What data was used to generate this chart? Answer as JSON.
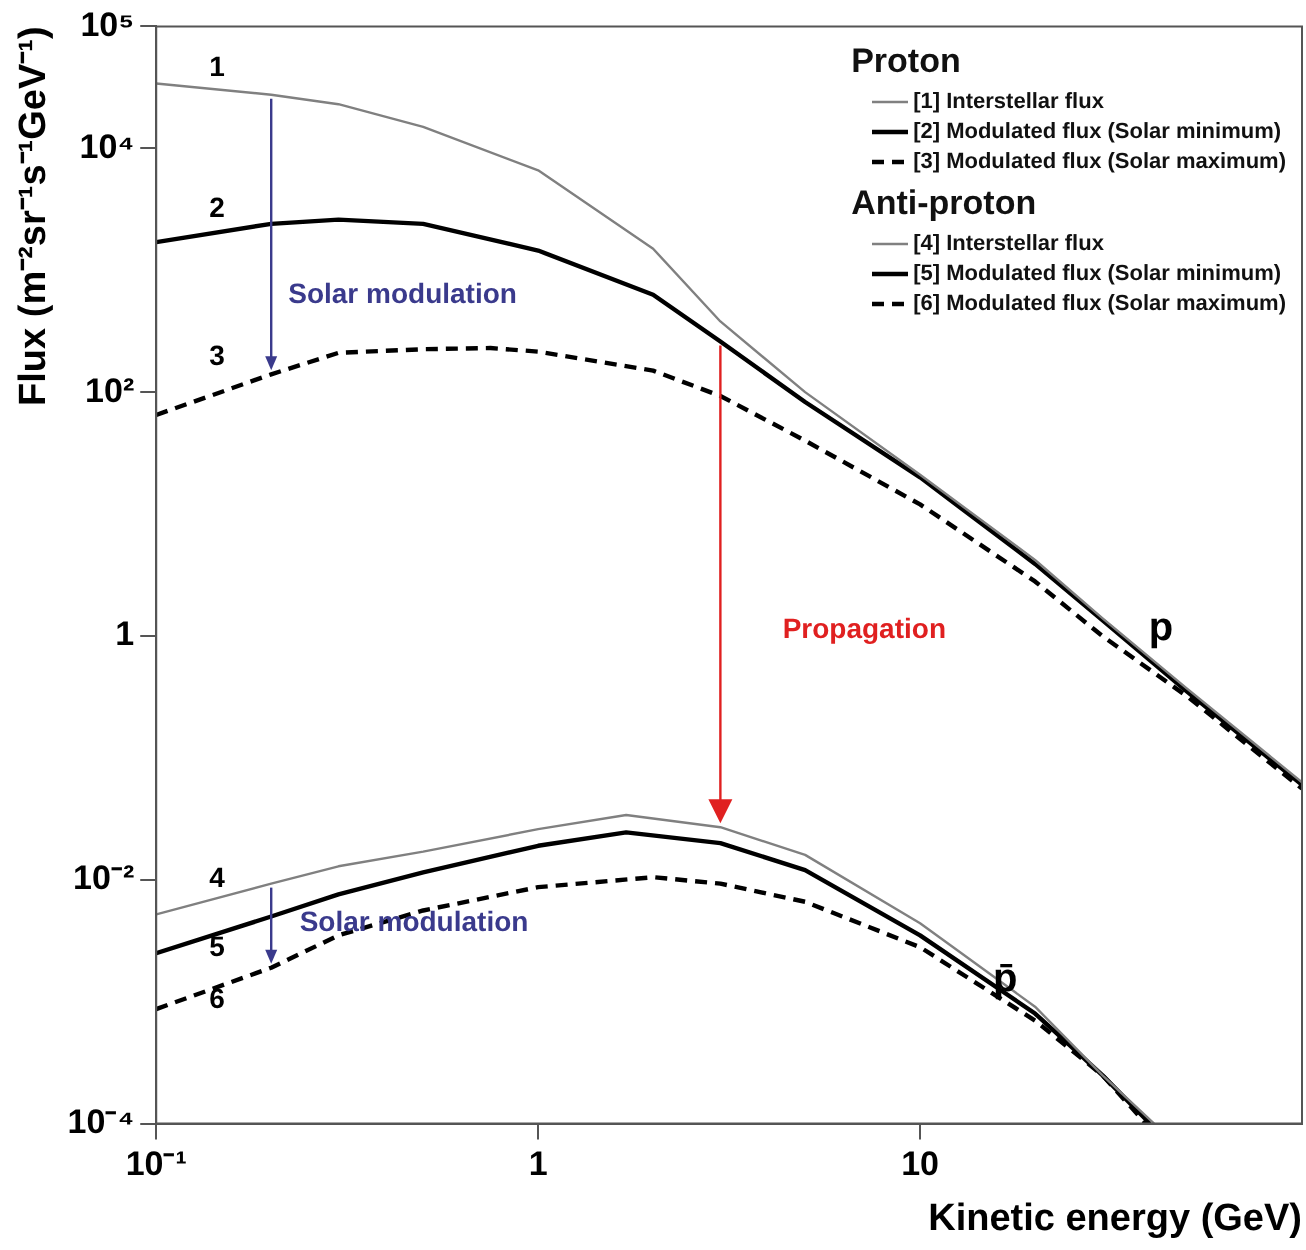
{
  "chart_data": {
    "type": "line",
    "xlabel": "Kinetic energy (GeV)",
    "ylabel": "Flux (m⁻²sr⁻¹s⁻¹GeV⁻¹)",
    "log": "xy",
    "xlim": [
      0.1,
      100
    ],
    "xticks": [
      {
        "value": 0.1,
        "label": "10⁻¹"
      },
      1,
      10
    ],
    "ylim": [
      0.0001,
      100000
    ],
    "yticks": [
      {
        "value": 0.0001,
        "label": "10⁻⁴"
      },
      {
        "value": 0.01,
        "label": "10⁻²"
      },
      1,
      {
        "value": 100,
        "label": "10²"
      },
      {
        "value": 10000,
        "label": "10⁴"
      },
      {
        "value": 100000,
        "label": "10⁵"
      }
    ],
    "grid": false,
    "legend": "top right",
    "marker": "none",
    "series": [
      {
        "name": "[1] Interstellar flux",
        "color": "#808080",
        "line_style": "solid",
        "x": [
          0.1,
          0.2,
          0.3,
          0.5,
          1,
          2,
          3,
          5,
          10,
          20,
          30,
          50,
          100
        ],
        "values": [
          34000,
          27500,
          23000,
          15000,
          6600,
          1500,
          380,
          100,
          21,
          4.2,
          1.4,
          0.37,
          0.063
        ]
      },
      {
        "name": "[2] Modulated flux (Solar minimum)",
        "color": "#000000",
        "line_style": "solid",
        "x": [
          0.1,
          0.2,
          0.3,
          0.5,
          1,
          2,
          3,
          5,
          10,
          20,
          30,
          50,
          100
        ],
        "values": [
          1700,
          2400,
          2600,
          2400,
          1450,
          630,
          260,
          83,
          20,
          3.9,
          1.35,
          0.35,
          0.06
        ]
      },
      {
        "name": "[3] Modulated flux (Solar maximum)",
        "color": "#000000",
        "line_style": "dashed",
        "x": [
          0.1,
          0.2,
          0.3,
          0.5,
          0.75,
          1,
          2,
          3,
          5,
          10,
          20,
          30,
          50,
          100
        ],
        "values": [
          65,
          140,
          210,
          225,
          230,
          215,
          150,
          93,
          40,
          12,
          2.8,
          1.0,
          0.32,
          0.056
        ]
      },
      {
        "name": "[4] Interstellar flux",
        "color": "#808080",
        "line_style": "solid",
        "x": [
          0.1,
          0.2,
          0.3,
          0.5,
          1,
          1.7,
          3,
          5,
          10,
          20,
          30,
          41
        ],
        "values": [
          0.0052,
          0.0093,
          0.0129,
          0.017,
          0.026,
          0.034,
          0.027,
          0.016,
          0.0044,
          0.00091,
          0.00025,
          0.0001
        ]
      },
      {
        "name": "[5] Modulated flux (Solar minimum)",
        "color": "#000000",
        "line_style": "solid",
        "x": [
          0.1,
          0.2,
          0.3,
          0.5,
          1,
          1.7,
          3,
          5,
          10,
          20,
          30,
          40
        ],
        "values": [
          0.0025,
          0.005,
          0.0076,
          0.0115,
          0.019,
          0.0245,
          0.02,
          0.012,
          0.0035,
          0.0008,
          0.00025,
          0.0001
        ]
      },
      {
        "name": "[6] Modulated flux (Solar maximum)",
        "color": "#000000",
        "line_style": "dashed",
        "x": [
          0.1,
          0.2,
          0.3,
          0.5,
          1,
          2,
          3,
          5,
          10,
          20,
          30,
          39
        ],
        "values": [
          0.00087,
          0.0019,
          0.0035,
          0.0056,
          0.0087,
          0.0105,
          0.0093,
          0.0066,
          0.0028,
          0.0007,
          0.00025,
          0.0001
        ]
      }
    ],
    "annotations": [
      "Proton",
      "Anti-proton",
      "1",
      "2",
      "3",
      "4",
      "5",
      "6",
      "Solar modulation",
      "Solar modulation",
      "Propagation",
      "p",
      "p̄"
    ]
  }
}
